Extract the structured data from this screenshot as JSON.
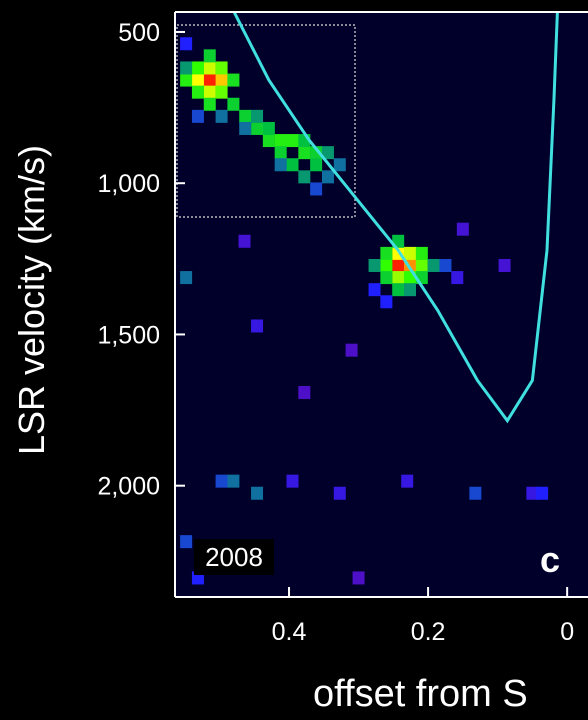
{
  "chart_data": {
    "type": "heatmap",
    "xlabel": "offset from S",
    "ylabel": "LSR velocity (km/s)",
    "annotations": [
      "2008",
      "c"
    ],
    "xlim": [
      0.564,
      -0.03
    ],
    "ylim": [
      434,
      2368
    ],
    "xticks": [
      0.4,
      0.2,
      0
    ],
    "yticks": [
      500,
      {
        "value": 1000,
        "label": "1,000"
      },
      {
        "value": 1500,
        "label": "1,500"
      },
      {
        "value": 2000,
        "label": "2,000"
      }
    ],
    "background": "#00002a",
    "colormap": [
      "#7a0090",
      "#2020ff",
      "#00c040",
      "#30ff00",
      "#ffff00",
      "#ff2000"
    ],
    "cells": {
      "x": [
        0.514,
        0.497,
        0.531,
        0.514,
        0.514,
        0.497,
        0.531,
        0.497,
        0.531,
        0.48,
        0.548,
        0.514,
        0.514,
        0.48,
        0.463,
        0.446,
        0.429,
        0.412,
        0.395,
        0.378,
        0.361,
        0.378,
        0.412,
        0.429,
        0.395,
        0.361,
        0.344,
        0.446,
        0.463,
        0.497,
        0.548,
        0.531,
        0.412,
        0.378,
        0.344,
        0.327,
        0.361,
        0.548,
        0.243,
        0.226,
        0.243,
        0.226,
        0.243,
        0.209,
        0.26,
        0.209,
        0.26,
        0.226,
        0.209,
        0.26,
        0.277,
        0.192,
        0.243,
        0.226,
        0.243,
        0.175,
        0.158,
        0.26,
        0.277,
        0.497,
        0.48,
        0.446,
        0.395,
        0.327,
        0.23,
        0.132,
        0.05,
        0.036,
        0.548,
        0.531,
        0.3,
        0.378,
        0.464,
        0.548,
        0.09,
        0.15,
        0.31,
        0.446
      ],
      "y": [
        659,
        659,
        659,
        619,
        699,
        619,
        619,
        699,
        699,
        659,
        659,
        579,
        739,
        739,
        779,
        819,
        859,
        859,
        859,
        899,
        899,
        859,
        899,
        819,
        939,
        939,
        899,
        779,
        819,
        779,
        619,
        779,
        939,
        979,
        979,
        939,
        1019,
        539,
        1272,
        1272,
        1232,
        1232,
        1312,
        1272,
        1272,
        1232,
        1232,
        1312,
        1312,
        1312,
        1272,
        1272,
        1352,
        1352,
        1192,
        1272,
        1312,
        1392,
        1352,
        1985,
        1985,
        2025,
        1985,
        2025,
        1985,
        2025,
        2025,
        2025,
        2185,
        2305,
        2305,
        1692,
        1192,
        1312,
        1272,
        1152,
        1552,
        1472
      ],
      "values": [
        1.0,
        0.85,
        0.8,
        0.75,
        0.75,
        0.65,
        0.6,
        0.65,
        0.55,
        0.5,
        0.55,
        0.45,
        0.5,
        0.45,
        0.45,
        0.45,
        0.5,
        0.55,
        0.55,
        0.5,
        0.45,
        0.4,
        0.45,
        0.4,
        0.4,
        0.4,
        0.35,
        0.35,
        0.3,
        0.3,
        0.35,
        0.25,
        0.3,
        0.35,
        0.3,
        0.3,
        0.25,
        0.2,
        1.0,
        0.9,
        0.8,
        0.75,
        0.7,
        0.65,
        0.6,
        0.55,
        0.5,
        0.6,
        0.45,
        0.45,
        0.35,
        0.35,
        0.4,
        0.35,
        0.4,
        0.25,
        0.15,
        0.2,
        0.2,
        0.25,
        0.3,
        0.3,
        0.15,
        0.15,
        0.15,
        0.25,
        0.15,
        0.2,
        0.25,
        0.2,
        0.1,
        0.1,
        0.12,
        0.3,
        0.12,
        0.12,
        0.1,
        0.15
      ]
    },
    "curve": {
      "color": "#40e0e0",
      "x": [
        0.479,
        0.429,
        0.371,
        0.307,
        0.243,
        0.186,
        0.129,
        0.086,
        0.05,
        0.029,
        0.019,
        0.014
      ],
      "y": [
        434,
        659,
        858,
        1040,
        1222,
        1421,
        1652,
        1785,
        1652,
        1222,
        725,
        434
      ]
    }
  }
}
